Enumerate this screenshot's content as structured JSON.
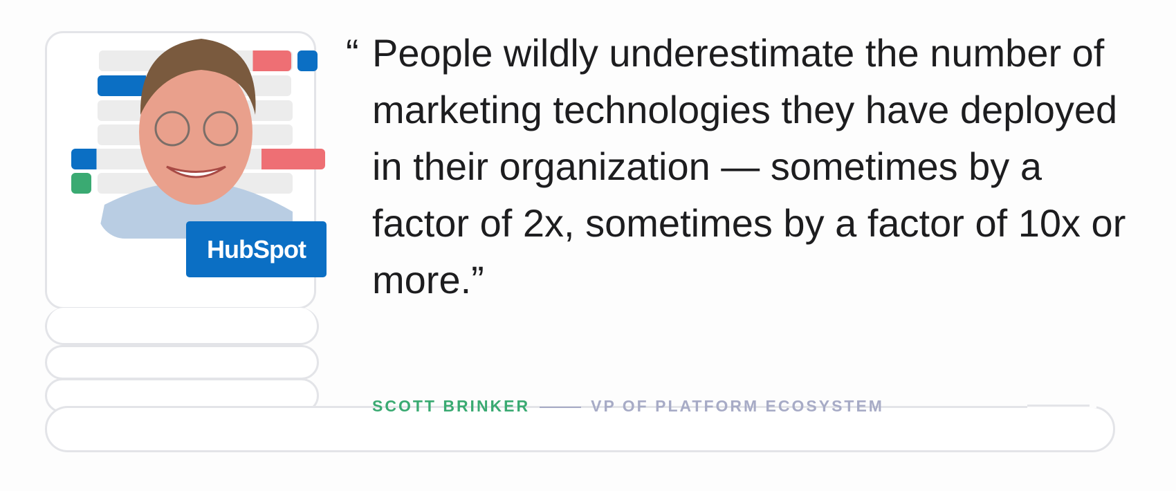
{
  "quote": {
    "open_mark": "“",
    "text": "People wildly underestimate the number of marketing technologies they have deployed in their organization — sometimes by a factor of 2x, sometimes by a factor of 10x or more.”"
  },
  "attribution": {
    "name": "SCOTT BRINKER",
    "title": "VP OF PLATFORM ECOSYSTEM"
  },
  "logo": {
    "text": "HubSpot",
    "color": "#0b6fc4"
  },
  "colors": {
    "accent_green": "#3aaa72",
    "accent_blue": "#0b6fc4",
    "accent_red": "#ee6f74",
    "muted": "#a7abc6"
  }
}
